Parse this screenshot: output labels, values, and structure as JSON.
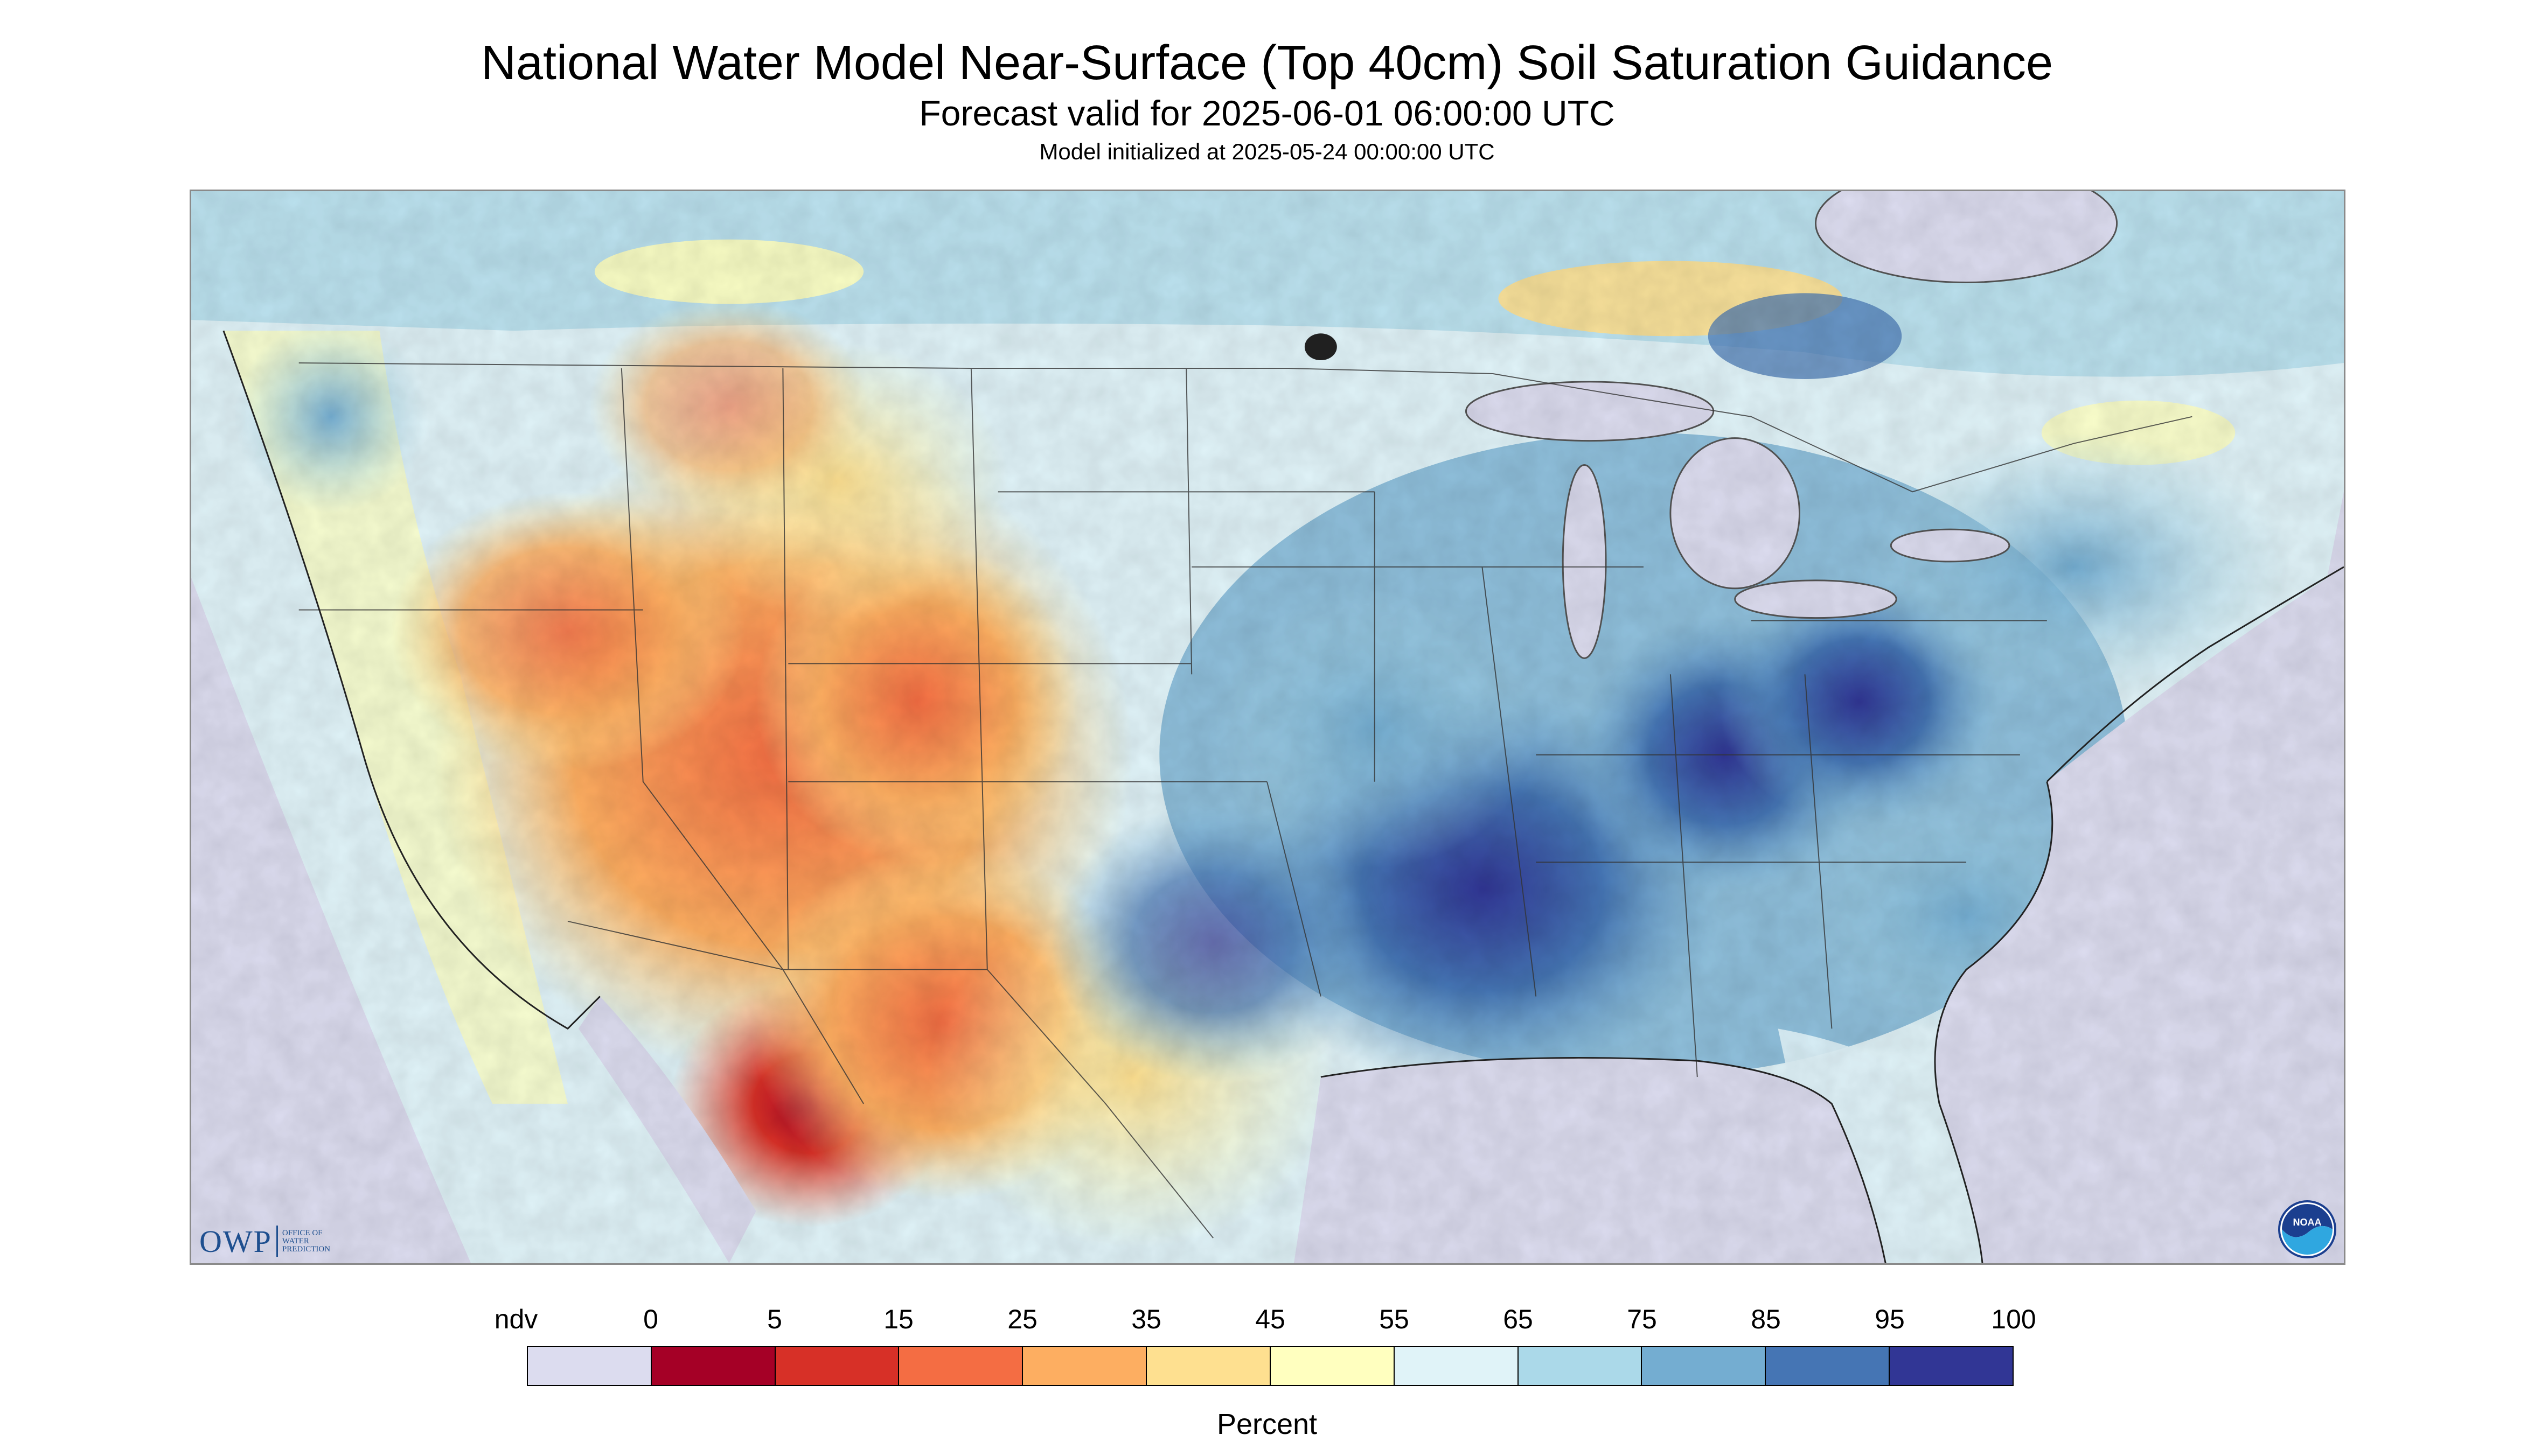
{
  "title": "National Water Model Near-Surface (Top 40cm) Soil Saturation Guidance",
  "subtitle": "Forecast valid for 2025-06-01 06:00:00 UTC",
  "init_line": "Model initialized at 2025-05-24 00:00:00 UTC",
  "map": {
    "region": "Contiguous United States",
    "background_color": "#dcdcef",
    "lake_color": "#dcdcef"
  },
  "logos": {
    "owp": {
      "letters": "OWP",
      "text": "OFFICE OF\nWATER\nPREDICTION"
    },
    "noaa": {
      "text": "NOAA"
    }
  },
  "legend": {
    "tick_labels": [
      "ndv",
      "0",
      "5",
      "15",
      "25",
      "35",
      "45",
      "55",
      "65",
      "75",
      "85",
      "95",
      "100"
    ],
    "colors": [
      "#dcdcef",
      "#a50026",
      "#d73027",
      "#f46d43",
      "#fdae61",
      "#fee090",
      "#ffffbf",
      "#e0f3f8",
      "#abd9e9",
      "#74add1",
      "#4575b4",
      "#313695"
    ],
    "unit": "Percent"
  }
}
